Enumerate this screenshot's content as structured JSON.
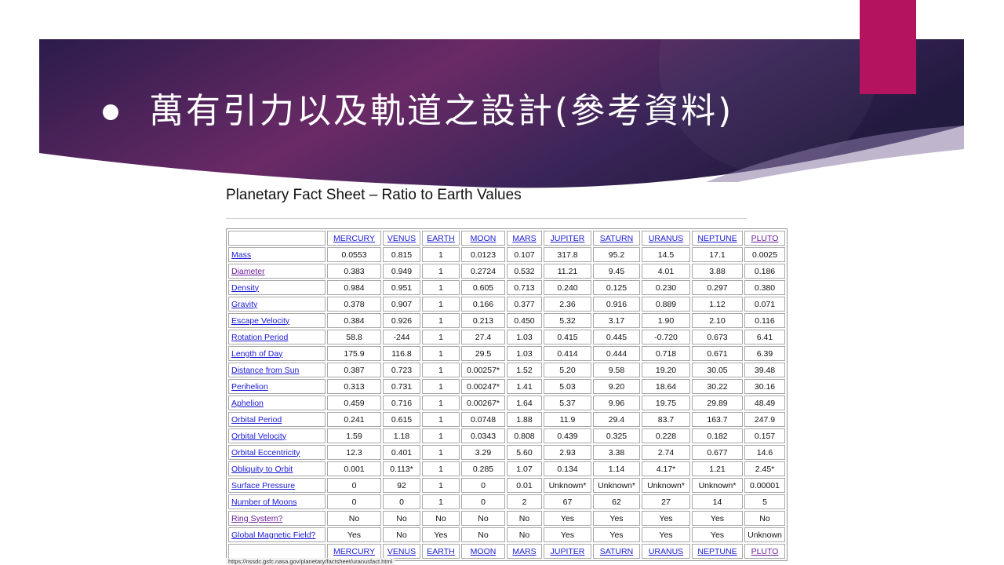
{
  "slide": {
    "title": "萬有引力以及軌道之設計(參考資料)",
    "colors": {
      "banner_dark": "#2a1d4a",
      "banner_mid": "#6b2b66",
      "accent": "#b3135f"
    }
  },
  "fact_sheet": {
    "title": "Planetary Fact Sheet – Ratio to Earth Values",
    "columns": [
      "MERCURY",
      "VENUS",
      "EARTH",
      "MOON",
      "MARS",
      "JUPITER",
      "SATURN",
      "URANUS",
      "NEPTUNE",
      "PLUTO"
    ],
    "rows": [
      {
        "label": "Mass",
        "values": [
          "0.0553",
          "0.815",
          "1",
          "0.0123",
          "0.107",
          "317.8",
          "95.2",
          "14.5",
          "17.1",
          "0.0025"
        ]
      },
      {
        "label": "Diameter",
        "values": [
          "0.383",
          "0.949",
          "1",
          "0.2724",
          "0.532",
          "11.21",
          "9.45",
          "4.01",
          "3.88",
          "0.186"
        ]
      },
      {
        "label": "Density",
        "values": [
          "0.984",
          "0.951",
          "1",
          "0.605",
          "0.713",
          "0.240",
          "0.125",
          "0.230",
          "0.297",
          "0.380"
        ]
      },
      {
        "label": "Gravity",
        "values": [
          "0.378",
          "0.907",
          "1",
          "0.166",
          "0.377",
          "2.36",
          "0.916",
          "0.889",
          "1.12",
          "0.071"
        ]
      },
      {
        "label": "Escape Velocity",
        "values": [
          "0.384",
          "0.926",
          "1",
          "0.213",
          "0.450",
          "5.32",
          "3.17",
          "1.90",
          "2.10",
          "0.116"
        ]
      },
      {
        "label": "Rotation Period",
        "values": [
          "58.8",
          "-244",
          "1",
          "27.4",
          "1.03",
          "0.415",
          "0.445",
          "-0.720",
          "0.673",
          "6.41"
        ]
      },
      {
        "label": "Length of Day",
        "values": [
          "175.9",
          "116.8",
          "1",
          "29.5",
          "1.03",
          "0.414",
          "0.444",
          "0.718",
          "0.671",
          "6.39"
        ]
      },
      {
        "label": "Distance from Sun",
        "values": [
          "0.387",
          "0.723",
          "1",
          "0.00257*",
          "1.52",
          "5.20",
          "9.58",
          "19.20",
          "30.05",
          "39.48"
        ]
      },
      {
        "label": "Perihelion",
        "values": [
          "0.313",
          "0.731",
          "1",
          "0.00247*",
          "1.41",
          "5.03",
          "9.20",
          "18.64",
          "30.22",
          "30.16"
        ]
      },
      {
        "label": "Aphelion",
        "values": [
          "0.459",
          "0.716",
          "1",
          "0.00267*",
          "1.64",
          "5.37",
          "9.96",
          "19.75",
          "29.89",
          "48.49"
        ]
      },
      {
        "label": "Orbital Period",
        "values": [
          "0.241",
          "0.615",
          "1",
          "0.0748",
          "1.88",
          "11.9",
          "29.4",
          "83.7",
          "163.7",
          "247.9"
        ]
      },
      {
        "label": "Orbital Velocity",
        "values": [
          "1.59",
          "1.18",
          "1",
          "0.0343",
          "0.808",
          "0.439",
          "0.325",
          "0.228",
          "0.182",
          "0.157"
        ]
      },
      {
        "label": "Orbital Eccentricity",
        "values": [
          "12.3",
          "0.401",
          "1",
          "3.29",
          "5.60",
          "2.93",
          "3.38",
          "2.74",
          "0.677",
          "14.6"
        ]
      },
      {
        "label": "Obliquity to Orbit",
        "values": [
          "0.001",
          "0.113*",
          "1",
          "0.285",
          "1.07",
          "0.134",
          "1.14",
          "4.17*",
          "1.21",
          "2.45*"
        ]
      },
      {
        "label": "Surface Pressure",
        "values": [
          "0",
          "92",
          "1",
          "0",
          "0.01",
          "Unknown*",
          "Unknown*",
          "Unknown*",
          "Unknown*",
          "0.00001"
        ]
      },
      {
        "label": "Number of Moons",
        "values": [
          "0",
          "0",
          "1",
          "0",
          "2",
          "67",
          "62",
          "27",
          "14",
          "5"
        ]
      },
      {
        "label": "Ring System?",
        "values": [
          "No",
          "No",
          "No",
          "No",
          "No",
          "Yes",
          "Yes",
          "Yes",
          "Yes",
          "No"
        ]
      },
      {
        "label": "Global Magnetic Field?",
        "values": [
          "Yes",
          "No",
          "Yes",
          "No",
          "No",
          "Yes",
          "Yes",
          "Yes",
          "Yes",
          "Unknown"
        ]
      }
    ],
    "visited_links": [
      "PLUTO",
      "Diameter",
      "Ring System?"
    ],
    "source_url": "https://nssdc.gsfc.nasa.gov/planetary/factsheet/uranusfact.html"
  }
}
